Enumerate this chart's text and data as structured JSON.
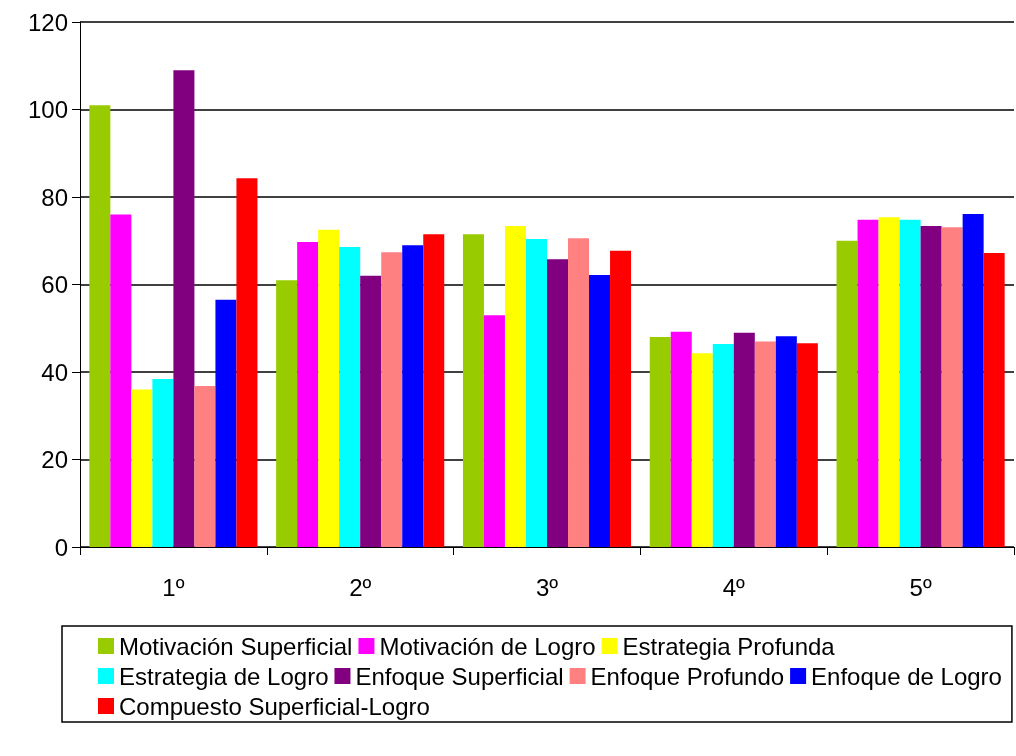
{
  "chart_data": {
    "type": "bar",
    "categories": [
      "1º",
      "2º",
      "3º",
      "4º",
      "5º"
    ],
    "ylim": [
      0,
      120
    ],
    "yticks": [
      0,
      20,
      40,
      60,
      80,
      100,
      120
    ],
    "grid": "y",
    "legend": "bottom",
    "series": [
      {
        "name": "Motivación Superficial",
        "color": "#99cc00",
        "values": [
          101,
          61,
          71.5,
          48,
          70
        ]
      },
      {
        "name": "Motivación de Logro",
        "color": "#ff00ff",
        "values": [
          76,
          69.7,
          53,
          49.2,
          74.8
        ]
      },
      {
        "name": "Estrategia Profunda",
        "color": "#ffff00",
        "values": [
          36,
          72.5,
          73.4,
          44.3,
          75.4
        ]
      },
      {
        "name": "Estrategia de Logro",
        "color": "#00ffff",
        "values": [
          38.4,
          68.6,
          70.4,
          46.4,
          74.8
        ]
      },
      {
        "name": "Enfoque Superficial",
        "color": "#800080",
        "values": [
          109,
          62,
          65.8,
          49,
          73.4
        ]
      },
      {
        "name": "Enfoque Profundo",
        "color": "#ff8080",
        "values": [
          36.8,
          67.4,
          70.6,
          47,
          73.1
        ]
      },
      {
        "name": "Enfoque de Logro",
        "color": "#0000ff",
        "values": [
          56.5,
          69,
          62.2,
          48.2,
          76.1
        ]
      },
      {
        "name": "Compuesto Superficial-Logro",
        "color": "#ff0000",
        "values": [
          84.3,
          71.5,
          67.7,
          46.6,
          67.2
        ]
      }
    ]
  }
}
